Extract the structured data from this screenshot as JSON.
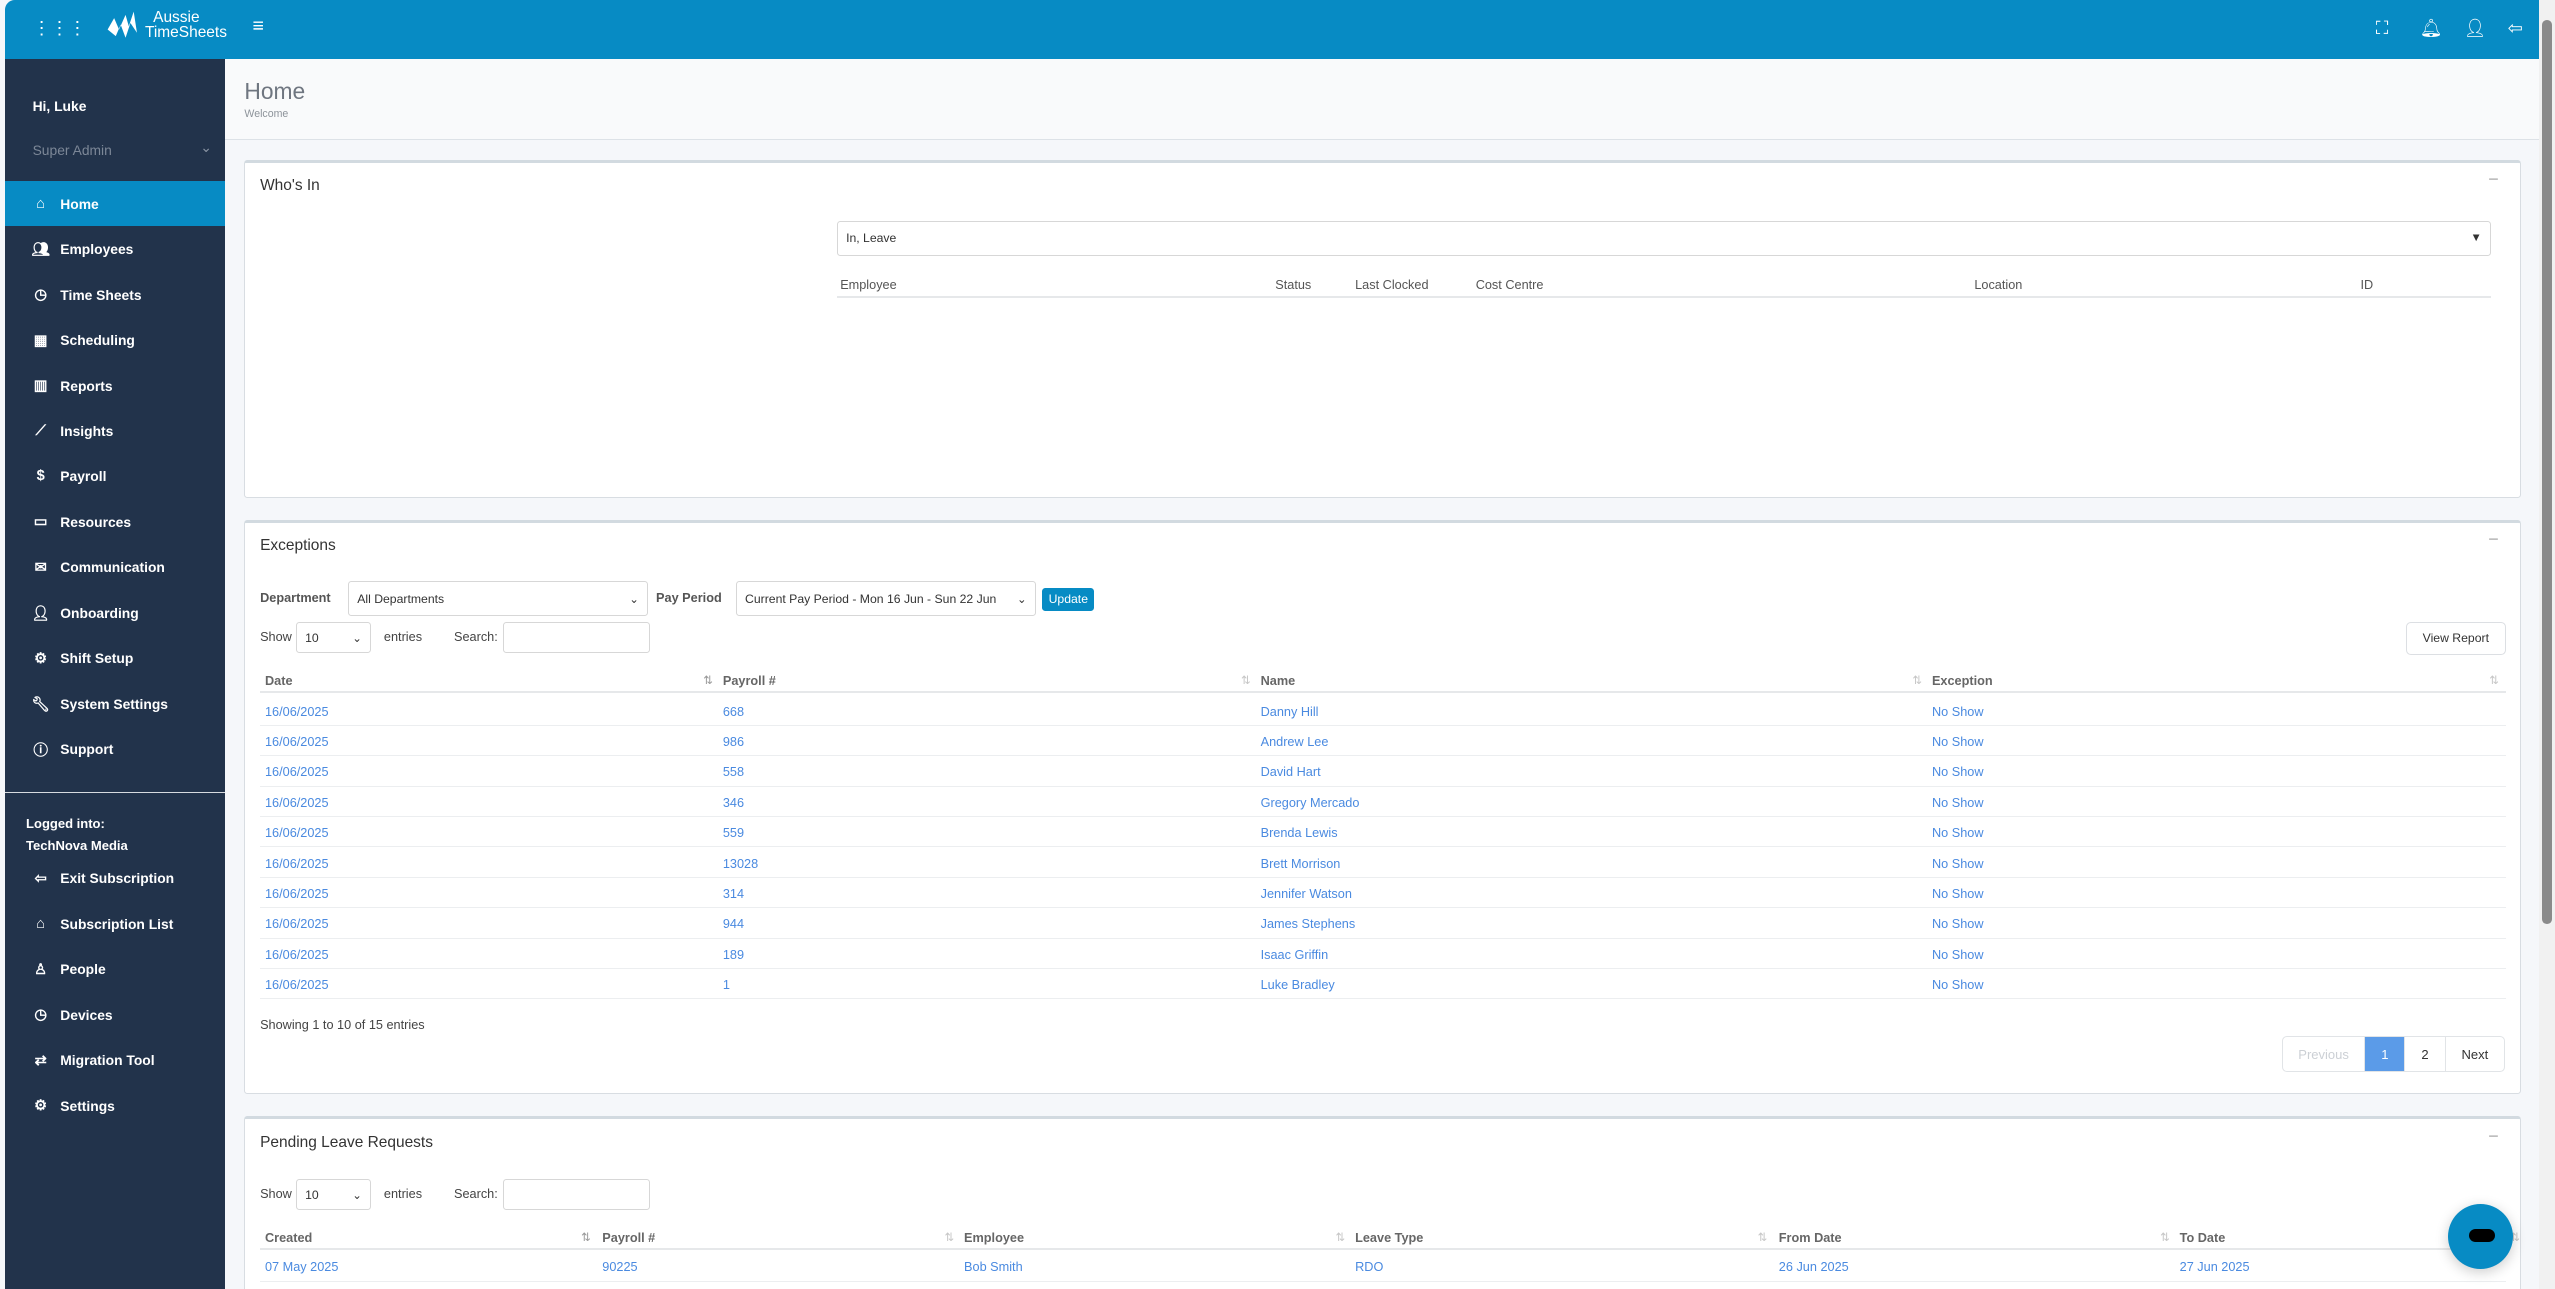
{
  "topbar": {
    "brand_line1": "Aussie",
    "brand_line2": "TimeSheets",
    "icons": [
      "apps-grid-icon",
      "menu-icon",
      "fullscreen-icon",
      "bell-icon",
      "support-agent-icon",
      "logout-icon"
    ]
  },
  "sidebar": {
    "greeting": "Hi, Luke",
    "role": "Super Admin",
    "items": [
      {
        "label": "Home",
        "icon": "home-icon"
      },
      {
        "label": "Employees",
        "icon": "users-icon"
      },
      {
        "label": "Time Sheets",
        "icon": "clock-icon"
      },
      {
        "label": "Scheduling",
        "icon": "calendar-icon"
      },
      {
        "label": "Reports",
        "icon": "bar-chart-icon"
      },
      {
        "label": "Insights",
        "icon": "line-chart-icon"
      },
      {
        "label": "Payroll",
        "icon": "dollar-icon"
      },
      {
        "label": "Resources",
        "icon": "folder-icon"
      },
      {
        "label": "Communication",
        "icon": "envelope-icon"
      },
      {
        "label": "Onboarding",
        "icon": "user-plus-icon"
      },
      {
        "label": "Shift Setup",
        "icon": "gear-icon"
      },
      {
        "label": "System Settings",
        "icon": "wrench-icon"
      },
      {
        "label": "Support",
        "icon": "question-icon"
      }
    ],
    "logged_label": "Logged into:",
    "logged_company": "TechNova Media",
    "bottom_items": [
      {
        "label": "Exit Subscription",
        "icon": "exit-icon"
      },
      {
        "label": "Subscription List",
        "icon": "home-icon"
      },
      {
        "label": "People",
        "icon": "person-icon"
      },
      {
        "label": "Devices",
        "icon": "clock-icon"
      },
      {
        "label": "Migration Tool",
        "icon": "swap-icon"
      },
      {
        "label": "Settings",
        "icon": "gear-icon"
      }
    ]
  },
  "page": {
    "title": "Home",
    "subtitle": "Welcome"
  },
  "whos_in": {
    "title": "Who's In",
    "filter": "In, Leave",
    "columns": [
      "Employee",
      "Status",
      "Last Clocked",
      "Cost Centre",
      "Location",
      "ID"
    ]
  },
  "exceptions": {
    "title": "Exceptions",
    "department_label": "Department",
    "department_value": "All Departments",
    "pay_period_label": "Pay Period",
    "pay_period_value": "Current Pay Period - Mon 16 Jun - Sun 22 Jun",
    "update_label": "Update",
    "show_label": "Show",
    "entries_value": "10",
    "entries_label": "entries",
    "search_label": "Search:",
    "search_value": "",
    "view_report_label": "View Report",
    "columns": [
      "Date",
      "Payroll #",
      "Name",
      "Exception"
    ],
    "rows": [
      [
        "16/06/2025",
        "668",
        "Danny Hill",
        "No Show"
      ],
      [
        "16/06/2025",
        "986",
        "Andrew Lee",
        "No Show"
      ],
      [
        "16/06/2025",
        "558",
        "David Hart",
        "No Show"
      ],
      [
        "16/06/2025",
        "346",
        "Gregory Mercado",
        "No Show"
      ],
      [
        "16/06/2025",
        "559",
        "Brenda Lewis",
        "No Show"
      ],
      [
        "16/06/2025",
        "13028",
        "Brett Morrison",
        "No Show"
      ],
      [
        "16/06/2025",
        "314",
        "Jennifer Watson",
        "No Show"
      ],
      [
        "16/06/2025",
        "944",
        "James Stephens",
        "No Show"
      ],
      [
        "16/06/2025",
        "189",
        "Isaac Griffin",
        "No Show"
      ],
      [
        "16/06/2025",
        "1",
        "Luke Bradley",
        "No Show"
      ]
    ],
    "info": "Showing 1 to 10 of 15 entries",
    "pager": {
      "previous": "Previous",
      "pages": [
        "1",
        "2"
      ],
      "current": "1",
      "next": "Next"
    }
  },
  "pending": {
    "title": "Pending Leave Requests",
    "show_label": "Show",
    "entries_value": "10",
    "entries_label": "entries",
    "search_label": "Search:",
    "search_value": "",
    "columns": [
      "Created",
      "Payroll #",
      "Employee",
      "Leave Type",
      "From Date",
      "To Date"
    ],
    "rows": [
      [
        "07 May 2025",
        "90225",
        "Bob Smith",
        "RDO",
        "26 Jun 2025",
        "27 Jun 2025"
      ]
    ]
  },
  "colors": {
    "primary": "#078bc4",
    "sidebar": "#22334b",
    "link": "#4a8ae0",
    "page_active": "#5b9be8"
  }
}
